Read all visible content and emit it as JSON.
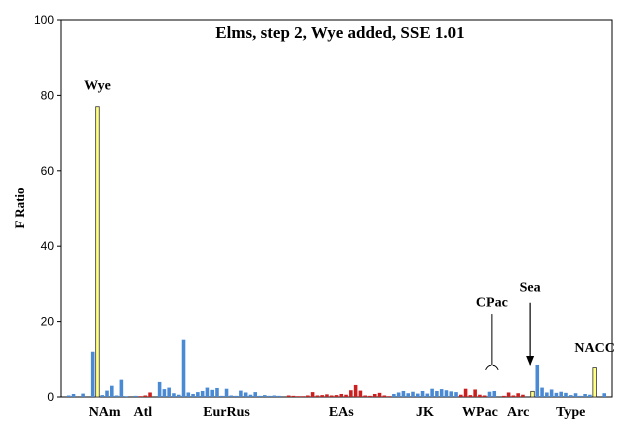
{
  "chart_data": {
    "type": "bar",
    "title": "Elms, step 2, Wye added, SSE 1.01",
    "xlabel": "",
    "ylabel": "F Ratio",
    "ylim": [
      0,
      100
    ],
    "yticks": [
      0,
      20,
      40,
      60,
      80,
      100
    ],
    "grid": false,
    "legend": "none",
    "colors": {
      "blue": "#4a8ad4",
      "red": "#cc2020",
      "yellow": "#ffff80",
      "stroke": "#333333"
    },
    "bars": [
      {
        "x": 1,
        "value": 0.4,
        "color": "blue"
      },
      {
        "x": 2,
        "value": 0.8,
        "color": "blue"
      },
      {
        "x": 4,
        "value": 0.9,
        "color": "blue"
      },
      {
        "x": 6,
        "value": 12.0,
        "color": "blue"
      },
      {
        "x": 7,
        "value": 77.0,
        "color": "yellow"
      },
      {
        "x": 8,
        "value": 0.5,
        "color": "blue"
      },
      {
        "x": 9,
        "value": 1.7,
        "color": "blue"
      },
      {
        "x": 10,
        "value": 3.0,
        "color": "blue"
      },
      {
        "x": 11,
        "value": 0.4,
        "color": "blue"
      },
      {
        "x": 12,
        "value": 4.6,
        "color": "blue"
      },
      {
        "x": 13,
        "value": 0.2,
        "color": "blue"
      },
      {
        "x": 15,
        "value": 0.3,
        "color": "blue"
      },
      {
        "x": 16,
        "value": 0.2,
        "color": "red"
      },
      {
        "x": 17,
        "value": 0.4,
        "color": "red"
      },
      {
        "x": 18,
        "value": 1.2,
        "color": "red"
      },
      {
        "x": 20,
        "value": 4.0,
        "color": "blue"
      },
      {
        "x": 21,
        "value": 2.1,
        "color": "blue"
      },
      {
        "x": 22,
        "value": 2.5,
        "color": "blue"
      },
      {
        "x": 23,
        "value": 1.0,
        "color": "blue"
      },
      {
        "x": 24,
        "value": 0.6,
        "color": "blue"
      },
      {
        "x": 25,
        "value": 15.2,
        "color": "blue"
      },
      {
        "x": 26,
        "value": 1.2,
        "color": "blue"
      },
      {
        "x": 27,
        "value": 0.8,
        "color": "blue"
      },
      {
        "x": 28,
        "value": 1.3,
        "color": "blue"
      },
      {
        "x": 29,
        "value": 1.6,
        "color": "blue"
      },
      {
        "x": 30,
        "value": 2.5,
        "color": "blue"
      },
      {
        "x": 31,
        "value": 1.9,
        "color": "blue"
      },
      {
        "x": 32,
        "value": 2.4,
        "color": "blue"
      },
      {
        "x": 33,
        "value": 0.3,
        "color": "blue"
      },
      {
        "x": 34,
        "value": 2.2,
        "color": "blue"
      },
      {
        "x": 35,
        "value": 0.4,
        "color": "blue"
      },
      {
        "x": 36,
        "value": 0.3,
        "color": "blue"
      },
      {
        "x": 37,
        "value": 1.7,
        "color": "blue"
      },
      {
        "x": 38,
        "value": 1.2,
        "color": "blue"
      },
      {
        "x": 39,
        "value": 0.6,
        "color": "blue"
      },
      {
        "x": 40,
        "value": 1.3,
        "color": "blue"
      },
      {
        "x": 41,
        "value": 0.3,
        "color": "blue"
      },
      {
        "x": 42,
        "value": 0.5,
        "color": "blue"
      },
      {
        "x": 43,
        "value": 0.3,
        "color": "blue"
      },
      {
        "x": 44,
        "value": 0.4,
        "color": "blue"
      },
      {
        "x": 45,
        "value": 0.3,
        "color": "blue"
      },
      {
        "x": 47,
        "value": 0.4,
        "color": "red"
      },
      {
        "x": 48,
        "value": 0.3,
        "color": "red"
      },
      {
        "x": 49,
        "value": 0.2,
        "color": "red"
      },
      {
        "x": 50,
        "value": 0.2,
        "color": "red"
      },
      {
        "x": 51,
        "value": 0.4,
        "color": "red"
      },
      {
        "x": 52,
        "value": 1.3,
        "color": "red"
      },
      {
        "x": 53,
        "value": 0.4,
        "color": "red"
      },
      {
        "x": 54,
        "value": 0.5,
        "color": "red"
      },
      {
        "x": 55,
        "value": 0.7,
        "color": "red"
      },
      {
        "x": 56,
        "value": 0.4,
        "color": "red"
      },
      {
        "x": 57,
        "value": 0.5,
        "color": "red"
      },
      {
        "x": 58,
        "value": 0.8,
        "color": "red"
      },
      {
        "x": 59,
        "value": 0.6,
        "color": "red"
      },
      {
        "x": 60,
        "value": 1.8,
        "color": "red"
      },
      {
        "x": 61,
        "value": 3.2,
        "color": "red"
      },
      {
        "x": 62,
        "value": 1.7,
        "color": "red"
      },
      {
        "x": 63,
        "value": 0.4,
        "color": "red"
      },
      {
        "x": 64,
        "value": 0.3,
        "color": "red"
      },
      {
        "x": 65,
        "value": 0.8,
        "color": "red"
      },
      {
        "x": 66,
        "value": 1.1,
        "color": "red"
      },
      {
        "x": 67,
        "value": 0.4,
        "color": "red"
      },
      {
        "x": 68,
        "value": 0.2,
        "color": "red"
      },
      {
        "x": 69,
        "value": 0.8,
        "color": "blue"
      },
      {
        "x": 70,
        "value": 1.2,
        "color": "blue"
      },
      {
        "x": 71,
        "value": 1.6,
        "color": "blue"
      },
      {
        "x": 72,
        "value": 1.0,
        "color": "blue"
      },
      {
        "x": 73,
        "value": 1.4,
        "color": "blue"
      },
      {
        "x": 74,
        "value": 0.9,
        "color": "blue"
      },
      {
        "x": 75,
        "value": 1.6,
        "color": "blue"
      },
      {
        "x": 76,
        "value": 0.9,
        "color": "blue"
      },
      {
        "x": 77,
        "value": 2.2,
        "color": "blue"
      },
      {
        "x": 78,
        "value": 1.6,
        "color": "blue"
      },
      {
        "x": 79,
        "value": 2.1,
        "color": "blue"
      },
      {
        "x": 80,
        "value": 1.8,
        "color": "blue"
      },
      {
        "x": 81,
        "value": 1.5,
        "color": "blue"
      },
      {
        "x": 82,
        "value": 1.3,
        "color": "blue"
      },
      {
        "x": 83,
        "value": 0.6,
        "color": "red"
      },
      {
        "x": 84,
        "value": 2.2,
        "color": "red"
      },
      {
        "x": 85,
        "value": 0.5,
        "color": "red"
      },
      {
        "x": 86,
        "value": 2.0,
        "color": "red"
      },
      {
        "x": 87,
        "value": 0.6,
        "color": "red"
      },
      {
        "x": 88,
        "value": 0.4,
        "color": "red"
      },
      {
        "x": 89,
        "value": 1.4,
        "color": "blue"
      },
      {
        "x": 90,
        "value": 1.6,
        "color": "blue"
      },
      {
        "x": 92,
        "value": 0.3,
        "color": "red"
      },
      {
        "x": 93,
        "value": 1.2,
        "color": "red"
      },
      {
        "x": 94,
        "value": 0.4,
        "color": "red"
      },
      {
        "x": 95,
        "value": 1.0,
        "color": "red"
      },
      {
        "x": 96,
        "value": 0.6,
        "color": "red"
      },
      {
        "x": 98,
        "value": 1.5,
        "color": "yellow"
      },
      {
        "x": 99,
        "value": 8.5,
        "color": "blue"
      },
      {
        "x": 100,
        "value": 2.5,
        "color": "blue"
      },
      {
        "x": 101,
        "value": 1.2,
        "color": "blue"
      },
      {
        "x": 102,
        "value": 2.0,
        "color": "blue"
      },
      {
        "x": 103,
        "value": 1.1,
        "color": "blue"
      },
      {
        "x": 104,
        "value": 1.4,
        "color": "blue"
      },
      {
        "x": 105,
        "value": 1.1,
        "color": "blue"
      },
      {
        "x": 106,
        "value": 0.5,
        "color": "blue"
      },
      {
        "x": 107,
        "value": 1.0,
        "color": "blue"
      },
      {
        "x": 108,
        "value": 0.3,
        "color": "blue"
      },
      {
        "x": 109,
        "value": 0.8,
        "color": "blue"
      },
      {
        "x": 110,
        "value": 0.6,
        "color": "blue"
      },
      {
        "x": 111,
        "value": 7.8,
        "color": "yellow"
      },
      {
        "x": 113,
        "value": 1.0,
        "color": "blue"
      }
    ],
    "x_range": [
      0,
      114
    ],
    "group_labels": [
      {
        "label": "NAm",
        "x": 8.5
      },
      {
        "label": "Atl",
        "x": 16.5
      },
      {
        "label": "EurRus",
        "x": 34
      },
      {
        "label": "EAs",
        "x": 58
      },
      {
        "label": "JK",
        "x": 75.5
      },
      {
        "label": "WPac",
        "x": 87
      },
      {
        "label": "Arc",
        "x": 95
      },
      {
        "label": "Type",
        "x": 106
      }
    ],
    "annotations": [
      {
        "text": "Wye",
        "x": 7,
        "value": 81.5
      },
      {
        "text": "CPac",
        "x": 89.5,
        "value": 24
      },
      {
        "text": "Sea",
        "x": 97.5,
        "value": 28
      },
      {
        "text": "NACC",
        "x": 111,
        "value": 12
      }
    ]
  }
}
